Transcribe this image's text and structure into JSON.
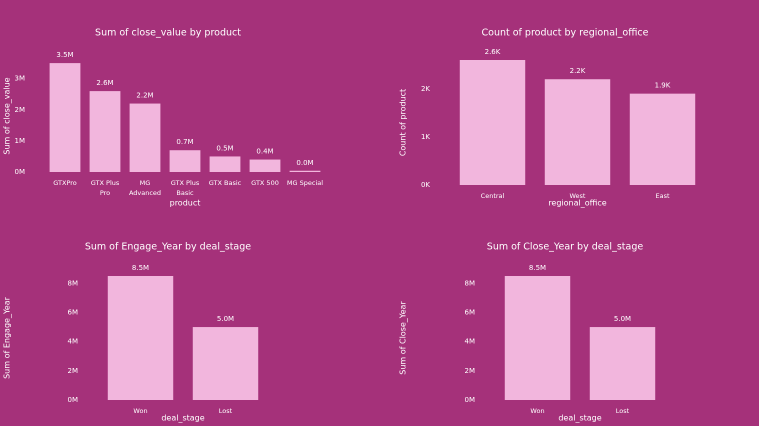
{
  "chart_data": [
    {
      "type": "bar",
      "title": "Sum of close_value by product",
      "x_label": "product",
      "y_label": "Sum of close_value",
      "categories": [
        "GTXPro",
        "GTX Plus Pro",
        "MG Advanced",
        "GTX Plus Basic",
        "GTX Basic",
        "GTX 500",
        "MG Special"
      ],
      "values": [
        3500000,
        2600000,
        2200000,
        700000,
        500000,
        400000,
        40000
      ],
      "value_labels": [
        "3.5M",
        "2.6M",
        "2.2M",
        "0.7M",
        "0.5M",
        "0.4M",
        "0.0M"
      ],
      "color": "#f2b6dd",
      "ylim": [
        0,
        3600000
      ],
      "yticks": [
        {
          "value": 0,
          "label": "0M"
        },
        {
          "value": 1000000,
          "label": "1M"
        },
        {
          "value": 2000000,
          "label": "2M"
        },
        {
          "value": 3000000,
          "label": "3M"
        }
      ]
    },
    {
      "type": "bar",
      "title": "Count of product by regional_office",
      "x_label": "regional_office",
      "y_label": "Count of product",
      "categories": [
        "Central",
        "West",
        "East"
      ],
      "values": [
        2600,
        2200,
        1900
      ],
      "value_labels": [
        "2.6K",
        "2.2K",
        "1.9K"
      ],
      "color": "#f2b6dd",
      "ylim": [
        0,
        2600
      ],
      "yticks": [
        {
          "value": 0,
          "label": "0K"
        },
        {
          "value": 1000,
          "label": "1K"
        },
        {
          "value": 2000,
          "label": "2K"
        }
      ]
    },
    {
      "type": "bar",
      "title": "Sum of Engage_Year by deal_stage",
      "x_label": "deal_stage",
      "y_label": "Sum of Engage_Year",
      "categories": [
        "Won",
        "Lost"
      ],
      "values": [
        8500000,
        5000000
      ],
      "value_labels": [
        "8.5M",
        "5.0M"
      ],
      "color": "#f2b6dd",
      "ylim": [
        0,
        8500000
      ],
      "yticks": [
        {
          "value": 0,
          "label": "0M"
        },
        {
          "value": 2000000,
          "label": "2M"
        },
        {
          "value": 4000000,
          "label": "4M"
        },
        {
          "value": 6000000,
          "label": "6M"
        },
        {
          "value": 8000000,
          "label": "8M"
        }
      ]
    },
    {
      "type": "bar",
      "title": "Sum of Close_Year by deal_stage",
      "x_label": "deal_stage",
      "y_label": "Sum of Close_Year",
      "categories": [
        "Won",
        "Lost"
      ],
      "values": [
        8500000,
        5000000
      ],
      "value_labels": [
        "8.5M",
        "5.0M"
      ],
      "color": "#f2b6dd",
      "ylim": [
        0,
        8500000
      ],
      "yticks": [
        {
          "value": 0,
          "label": "0M"
        },
        {
          "value": 2000000,
          "label": "2M"
        },
        {
          "value": 4000000,
          "label": "4M"
        },
        {
          "value": 6000000,
          "label": "6M"
        },
        {
          "value": 8000000,
          "label": "8M"
        }
      ]
    }
  ]
}
